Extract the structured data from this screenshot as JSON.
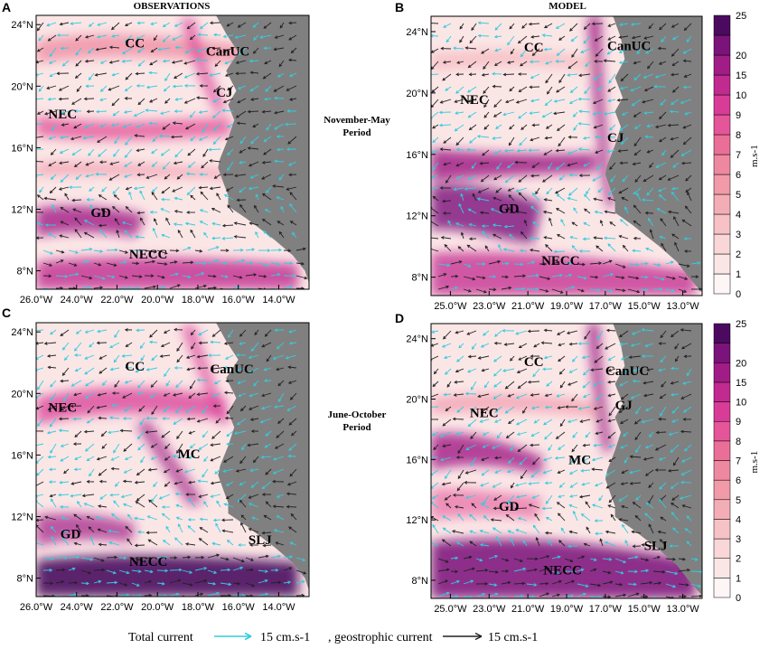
{
  "chart_data": [
    {
      "type": "heatmap",
      "panel": "A",
      "title": "OBSERVATIONS",
      "xlim": [
        -26,
        -12.5
      ],
      "ylim": [
        6.8,
        24.6
      ],
      "xticks": [
        "26.0°W",
        "24.0°W",
        "22.0°W",
        "20.0°W",
        "18.0°W",
        "16.0°W",
        "14.0°W"
      ],
      "xtick_values": [
        -26,
        -24,
        -22,
        -20,
        -18,
        -16,
        -14
      ],
      "yticks": [
        "24°N",
        "20°N",
        "16°N",
        "12°N",
        "8°N"
      ],
      "ytick_values": [
        24,
        20,
        16,
        12,
        8
      ],
      "annotations": [
        {
          "text": "CC",
          "lon": -21.6,
          "lat": 22.5
        },
        {
          "text": "CanUC",
          "lon": -17.6,
          "lat": 22.0
        },
        {
          "text": "CJ",
          "lon": -17.1,
          "lat": 19.3
        },
        {
          "text": "NEC",
          "lon": -25.4,
          "lat": 17.9
        },
        {
          "text": "GD",
          "lon": -23.3,
          "lat": 11.5
        },
        {
          "text": "NECC",
          "lon": -21.4,
          "lat": 8.8
        }
      ],
      "coast": [
        [
          -12.5,
          24.6
        ],
        [
          -17.1,
          24.6
        ],
        [
          -16.6,
          23.4
        ],
        [
          -16.0,
          22.2
        ],
        [
          -16.6,
          21.0
        ],
        [
          -16.1,
          19.7
        ],
        [
          -16.5,
          18.8
        ],
        [
          -16.2,
          17.8
        ],
        [
          -16.5,
          16.6
        ],
        [
          -16.9,
          15.3
        ],
        [
          -17.0,
          14.7
        ],
        [
          -16.7,
          13.6
        ],
        [
          -16.5,
          12.9
        ],
        [
          -16.5,
          12.2
        ],
        [
          -15.6,
          11.4
        ],
        [
          -15.0,
          10.8
        ],
        [
          -14.2,
          10.0
        ],
        [
          -13.3,
          9.0
        ],
        [
          -12.7,
          8.0
        ],
        [
          -12.5,
          7.2
        ],
        [
          -12.5,
          24.6
        ]
      ]
    },
    {
      "type": "heatmap",
      "panel": "B",
      "title": "MODEL",
      "xlim": [
        -26,
        -12
      ],
      "ylim": [
        6.8,
        25
      ],
      "xticks": [
        "25.0°W",
        "23.0°W",
        "21.0°W",
        "19.0°W",
        "17.0°W",
        "15.0°W",
        "13.0°W"
      ],
      "xtick_values": [
        -25,
        -23,
        -21,
        -19,
        -17,
        -15,
        -13
      ],
      "yticks": [
        "24°N",
        "20°N",
        "16°N",
        "12°N",
        "8°N"
      ],
      "ytick_values": [
        24,
        20,
        16,
        12,
        8
      ],
      "annotations": [
        {
          "text": "CC",
          "lon": -21.2,
          "lat": 22.7
        },
        {
          "text": "CanUC",
          "lon": -16.9,
          "lat": 22.8
        },
        {
          "text": "NEC",
          "lon": -24.5,
          "lat": 19.3
        },
        {
          "text": "CJ",
          "lon": -16.9,
          "lat": 16.8
        },
        {
          "text": "GD",
          "lon": -22.5,
          "lat": 12.2
        },
        {
          "text": "NECC",
          "lon": -20.3,
          "lat": 8.8
        }
      ],
      "coast": [
        [
          -12,
          25
        ],
        [
          -16.6,
          25
        ],
        [
          -16.2,
          23.6
        ],
        [
          -16.0,
          22.2
        ],
        [
          -16.5,
          21.0
        ],
        [
          -16.1,
          19.7
        ],
        [
          -16.5,
          18.8
        ],
        [
          -16.2,
          17.8
        ],
        [
          -16.5,
          16.6
        ],
        [
          -16.9,
          15.3
        ],
        [
          -17.0,
          14.7
        ],
        [
          -16.7,
          13.6
        ],
        [
          -16.5,
          12.9
        ],
        [
          -16.5,
          12.2
        ],
        [
          -15.6,
          11.4
        ],
        [
          -15.0,
          10.8
        ],
        [
          -14.2,
          10.0
        ],
        [
          -13.3,
          9.0
        ],
        [
          -12.7,
          8.0
        ],
        [
          -12.0,
          7.0
        ],
        [
          -12,
          25
        ]
      ]
    },
    {
      "type": "heatmap",
      "panel": "C",
      "xlim": [
        -26,
        -12.5
      ],
      "ylim": [
        6.8,
        24.6
      ],
      "xticks": [
        "26.0°W",
        "24.0°W",
        "22.0°W",
        "20.0°W",
        "18.0°W",
        "16.0°W",
        "14.0°W"
      ],
      "xtick_values": [
        -26,
        -24,
        -22,
        -20,
        -18,
        -16,
        -14
      ],
      "yticks": [
        "24°N",
        "20°N",
        "16°N",
        "12°N",
        "8°N"
      ],
      "ytick_values": [
        24,
        20,
        16,
        12,
        8
      ],
      "annotations": [
        {
          "text": "CC",
          "lon": -21.6,
          "lat": 21.5
        },
        {
          "text": "CanUC",
          "lon": -17.4,
          "lat": 21.3
        },
        {
          "text": "NEC",
          "lon": -25.4,
          "lat": 18.8
        },
        {
          "text": "MC",
          "lon": -19.0,
          "lat": 15.8
        },
        {
          "text": "GD",
          "lon": -24.8,
          "lat": 10.6
        },
        {
          "text": "SLJ",
          "lon": -15.5,
          "lat": 10.2
        },
        {
          "text": "NECC",
          "lon": -21.4,
          "lat": 8.8
        }
      ],
      "coast": [
        [
          -12.5,
          24.6
        ],
        [
          -17.1,
          24.6
        ],
        [
          -16.6,
          23.4
        ],
        [
          -16.0,
          22.2
        ],
        [
          -16.6,
          21.0
        ],
        [
          -16.1,
          19.7
        ],
        [
          -16.5,
          18.8
        ],
        [
          -16.2,
          17.8
        ],
        [
          -16.5,
          16.6
        ],
        [
          -16.9,
          15.3
        ],
        [
          -17.0,
          14.7
        ],
        [
          -16.7,
          13.6
        ],
        [
          -16.5,
          12.9
        ],
        [
          -16.5,
          12.2
        ],
        [
          -15.6,
          11.4
        ],
        [
          -15.0,
          10.8
        ],
        [
          -14.2,
          10.0
        ],
        [
          -13.3,
          9.0
        ],
        [
          -12.7,
          8.0
        ],
        [
          -12.5,
          7.2
        ],
        [
          -12.5,
          24.6
        ]
      ]
    },
    {
      "type": "heatmap",
      "panel": "D",
      "xlim": [
        -26,
        -12
      ],
      "ylim": [
        6.8,
        25
      ],
      "xticks": [
        "25.0°W",
        "23.0°W",
        "21.0°W",
        "19.0°W",
        "17.0°W",
        "15.0°W",
        "13.0°W"
      ],
      "xtick_values": [
        -25,
        -23,
        -21,
        -19,
        -17,
        -15,
        -13
      ],
      "yticks": [
        "24°N",
        "20°N",
        "16°N",
        "12°N",
        "8°N"
      ],
      "ytick_values": [
        24,
        20,
        16,
        12,
        8
      ],
      "annotations": [
        {
          "text": "CC",
          "lon": -21.2,
          "lat": 22.2
        },
        {
          "text": "CanUC",
          "lon": -17.0,
          "lat": 21.6
        },
        {
          "text": "NEC",
          "lon": -24.0,
          "lat": 18.8
        },
        {
          "text": "GJ",
          "lon": -16.5,
          "lat": 19.3
        },
        {
          "text": "MC",
          "lon": -18.9,
          "lat": 15.7
        },
        {
          "text": "GD",
          "lon": -22.5,
          "lat": 12.6
        },
        {
          "text": "SLJ",
          "lon": -15.0,
          "lat": 10.0
        },
        {
          "text": "NECC",
          "lon": -20.2,
          "lat": 8.4
        }
      ],
      "coast": [
        [
          -12,
          25
        ],
        [
          -16.6,
          25
        ],
        [
          -16.2,
          23.6
        ],
        [
          -16.0,
          22.2
        ],
        [
          -16.5,
          21.0
        ],
        [
          -16.1,
          19.7
        ],
        [
          -16.5,
          18.8
        ],
        [
          -16.2,
          17.8
        ],
        [
          -16.5,
          16.6
        ],
        [
          -16.9,
          15.3
        ],
        [
          -17.0,
          14.7
        ],
        [
          -16.7,
          13.6
        ],
        [
          -16.5,
          12.9
        ],
        [
          -16.5,
          12.2
        ],
        [
          -15.6,
          11.4
        ],
        [
          -15.0,
          10.8
        ],
        [
          -14.2,
          10.0
        ],
        [
          -13.3,
          9.0
        ],
        [
          -12.7,
          8.0
        ],
        [
          -12.0,
          7.0
        ],
        [
          -12,
          25
        ]
      ]
    }
  ],
  "period_labels": [
    {
      "line1": "November-May",
      "line2": "Period"
    },
    {
      "line1": "June-October",
      "line2": "Period"
    }
  ],
  "colorbars": [
    {
      "levels": [
        "0",
        "1",
        "2",
        "3",
        "4",
        "5",
        "6",
        "7",
        "8",
        "9",
        "10",
        "15",
        "20",
        "25"
      ],
      "colors": [
        "#fdf6f6",
        "#fbe6e6",
        "#f9d6d8",
        "#f6c2c6",
        "#f3aeb5",
        "#f19aa8",
        "#ee88a0",
        "#ea6f98",
        "#e4559a",
        "#d83c97",
        "#c12a8f",
        "#a11c86",
        "#7a137a",
        "#4b0a5f"
      ],
      "unit": "m.s-1"
    },
    {
      "levels": [
        "0",
        "1",
        "2",
        "3",
        "4",
        "5",
        "6",
        "7",
        "8",
        "9",
        "10",
        "15",
        "20",
        "25"
      ],
      "colors": [
        "#fdf6f6",
        "#fbe6e6",
        "#f9d6d8",
        "#f6c2c6",
        "#f3aeb5",
        "#f19aa8",
        "#ee88a0",
        "#ea6f98",
        "#e4559a",
        "#d83c97",
        "#c12a8f",
        "#a11c86",
        "#7a137a",
        "#4b0a5f"
      ],
      "unit": "m.s-1"
    }
  ],
  "legend": {
    "total_label": "Total current",
    "total_scale": "15 cm.s-1",
    "geo_label": ", geostrophic current",
    "geo_scale": "15 cm.s-1",
    "total_color": "#33ccdd",
    "geo_color": "#222222"
  },
  "colors": {
    "land": "#808080",
    "background": "#fbe6e6"
  }
}
